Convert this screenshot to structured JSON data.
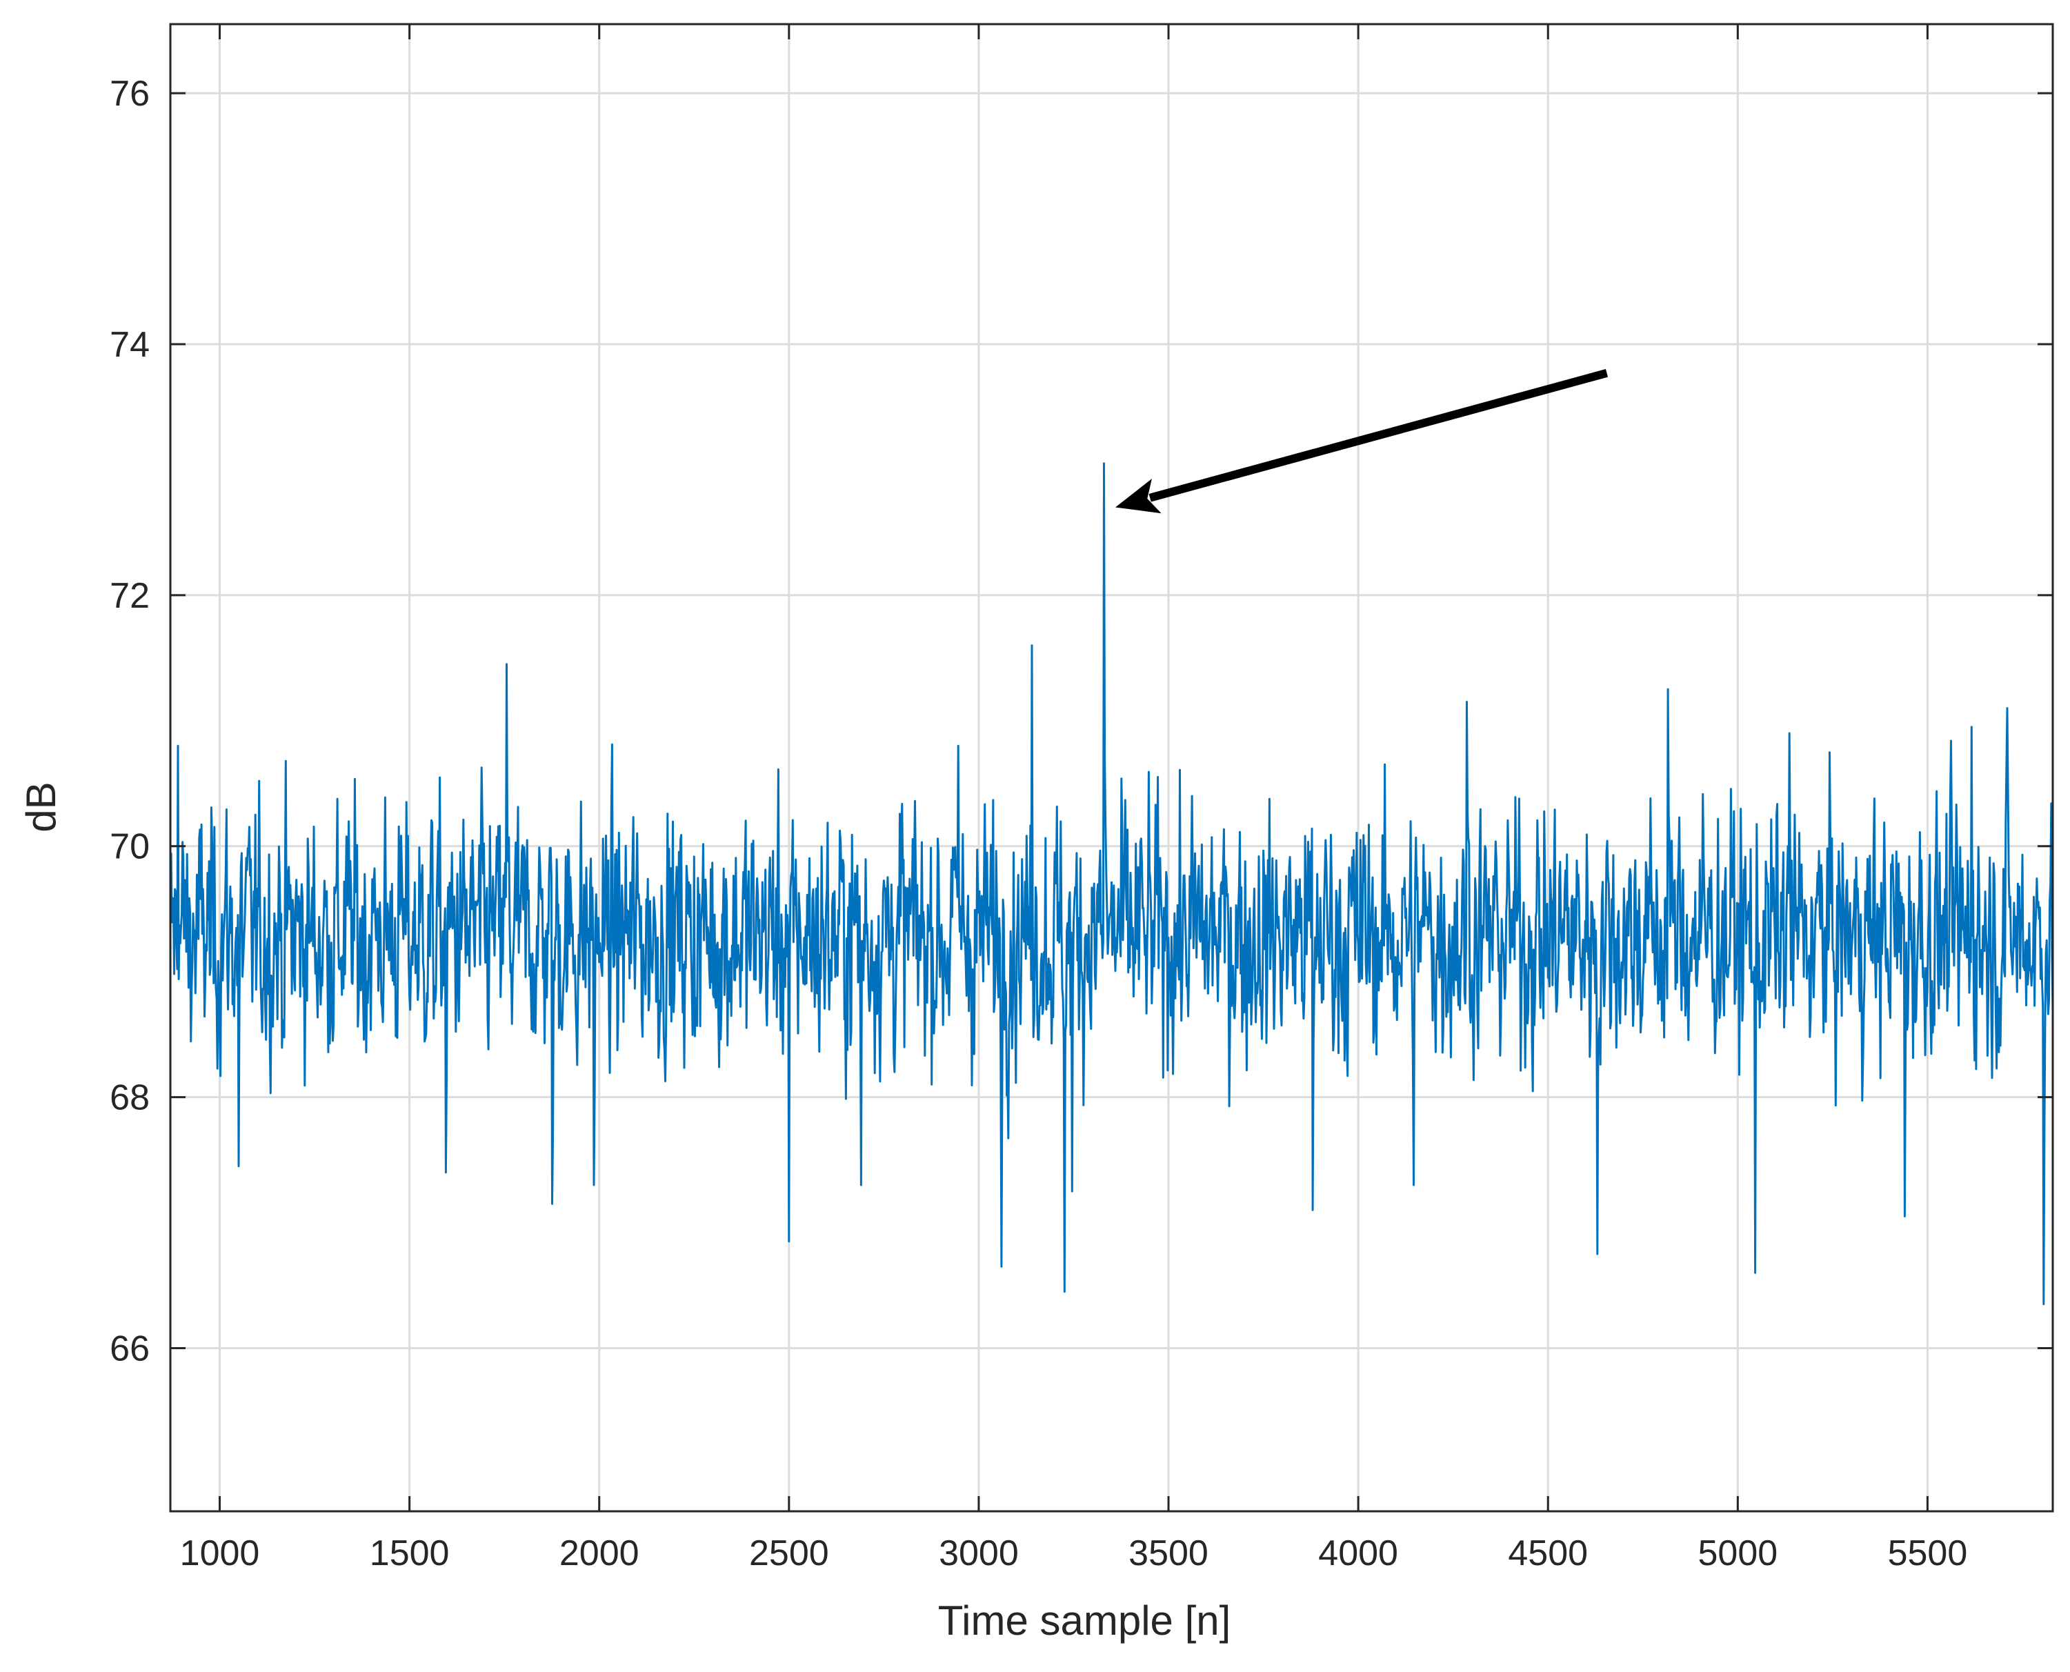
{
  "chart_data": {
    "type": "line",
    "title": "",
    "xlabel": "Time sample [n]",
    "ylabel": "dB",
    "xlim": [
      870,
      5830
    ],
    "ylim": [
      64.7,
      76.55
    ],
    "xticks": [
      1000,
      1500,
      2000,
      2500,
      3000,
      3500,
      4000,
      4500,
      5000,
      5500
    ],
    "yticks": [
      66,
      68,
      70,
      72,
      74,
      76
    ],
    "grid": true,
    "legend": "none",
    "colors": {
      "series": "#0072BD",
      "grid": "#dcdcdc",
      "axes": "#262626",
      "annotation": "#000000"
    },
    "series": [
      {
        "color": "#0072BD",
        "x_start": 870,
        "x_end": 5830,
        "baseline": 69.3,
        "band": [
          67.6,
          71.2
        ],
        "spikes": [
          {
            "x": 3330,
            "y": 73.05
          },
          {
            "x": 3140,
            "y": 71.6
          },
          {
            "x": 1755,
            "y": 71.45
          },
          {
            "x": 4815,
            "y": 71.25
          },
          {
            "x": 4285,
            "y": 71.15
          },
          {
            "x": 5710,
            "y": 71.1
          },
          {
            "x": 5615,
            "y": 70.95
          },
          {
            "x": 5135,
            "y": 70.9
          },
          {
            "x": 890,
            "y": 70.8
          },
          {
            "x": 2945,
            "y": 70.8
          },
          {
            "x": 3225,
            "y": 66.45
          },
          {
            "x": 5805,
            "y": 66.35
          },
          {
            "x": 3060,
            "y": 66.65
          },
          {
            "x": 5045,
            "y": 66.6
          },
          {
            "x": 2500,
            "y": 66.85
          },
          {
            "x": 4630,
            "y": 66.75
          },
          {
            "x": 5440,
            "y": 67.05
          },
          {
            "x": 3880,
            "y": 67.1
          },
          {
            "x": 1875,
            "y": 67.15
          },
          {
            "x": 3245,
            "y": 67.25
          },
          {
            "x": 1985,
            "y": 67.3
          },
          {
            "x": 2690,
            "y": 67.3
          },
          {
            "x": 4145,
            "y": 67.3
          },
          {
            "x": 1050,
            "y": 67.45
          },
          {
            "x": 1595,
            "y": 67.4
          }
        ]
      }
    ],
    "annotations": [
      {
        "type": "arrow",
        "from": [
          4655,
          73.77
        ],
        "to": [
          3360,
          72.7
        ]
      }
    ]
  }
}
